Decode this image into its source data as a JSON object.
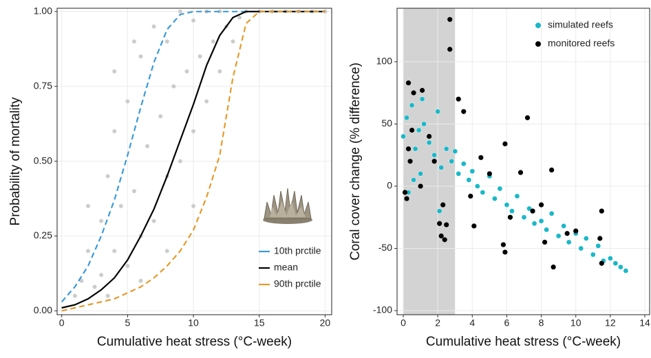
{
  "chart_data": [
    {
      "type": "scatter",
      "xlabel": "Cumulative heat stress (°C-week)",
      "ylabel": "Probability of mortality",
      "xlim": [
        -0.35,
        20.5
      ],
      "ylim": [
        -0.013,
        1.011
      ],
      "xticks": [
        0,
        5,
        10,
        15,
        20
      ],
      "yticks": [
        {
          "value": 0,
          "label": "0.00"
        },
        {
          "value": 0.25,
          "label": "0.25"
        },
        {
          "value": 0.5,
          "label": "0.50"
        },
        {
          "value": 0.75,
          "label": "0.75"
        },
        {
          "value": 1,
          "label": "1.00"
        }
      ],
      "grid": true,
      "legend": "lower right",
      "series": [
        {
          "mode": "points",
          "color": "#cccccc",
          "x": [
            1,
            1.5,
            2,
            2.5,
            3,
            3,
            3.5,
            4,
            4,
            4.5,
            5,
            5,
            5.5,
            6,
            6,
            6.5,
            7,
            7,
            7.5,
            8,
            8,
            8.5,
            9,
            9,
            9.5,
            10,
            10,
            10.5,
            11,
            11,
            11.5,
            12,
            12,
            12.5,
            13,
            13.5,
            14,
            15,
            16,
            17,
            18,
            19,
            20,
            2,
            4,
            6,
            8,
            10,
            3.5,
            5.5
          ],
          "values": [
            0.05,
            0.1,
            0.2,
            0.08,
            0.3,
            0.12,
            0.45,
            0.2,
            0.6,
            0.35,
            0.15,
            0.7,
            0.4,
            0.25,
            0.85,
            0.55,
            0.3,
            0.95,
            0.65,
            0.45,
            0.9,
            0.75,
            0.5,
            1.0,
            0.8,
            0.6,
            0.97,
            0.85,
            0.7,
            1.0,
            0.9,
            0.8,
            1.0,
            0.95,
            0.9,
            0.98,
            1.0,
            1,
            1,
            1,
            1,
            1,
            1,
            0.35,
            0.8,
            0.1,
            0.2,
            0.35,
            0.05,
            0.9
          ]
        },
        {
          "mode": "line",
          "dashed": true,
          "name": "10th prctile",
          "color": "#3a9ad9",
          "x": [
            0,
            1,
            2,
            3,
            4,
            5,
            6,
            7,
            8,
            9,
            10,
            11,
            12,
            13,
            14,
            15,
            16,
            17,
            18,
            19,
            20
          ],
          "values": [
            0.03,
            0.08,
            0.15,
            0.25,
            0.37,
            0.52,
            0.68,
            0.83,
            0.94,
            0.99,
            1,
            1,
            1,
            1,
            1,
            1,
            1,
            1,
            1,
            1,
            1
          ]
        },
        {
          "mode": "line",
          "dashed": false,
          "name": "mean",
          "color": "#000000",
          "x": [
            0,
            1,
            2,
            3,
            4,
            5,
            6,
            7,
            8,
            9,
            10,
            11,
            12,
            13,
            14,
            15,
            16,
            17,
            18,
            19,
            20
          ],
          "values": [
            0.01,
            0.02,
            0.04,
            0.07,
            0.11,
            0.17,
            0.25,
            0.34,
            0.45,
            0.57,
            0.69,
            0.82,
            0.92,
            0.98,
            1,
            1,
            1,
            1,
            1,
            1,
            1
          ]
        },
        {
          "mode": "line",
          "dashed": true,
          "name": "90th prctile",
          "color": "#e69a2a",
          "x": [
            0,
            1,
            2,
            3,
            4,
            5,
            6,
            7,
            8,
            9,
            10,
            11,
            12,
            13,
            14,
            15,
            16,
            17,
            18,
            19,
            20
          ],
          "values": [
            0,
            0.01,
            0.02,
            0.03,
            0.04,
            0.06,
            0.08,
            0.11,
            0.15,
            0.2,
            0.27,
            0.38,
            0.52,
            0.78,
            0.96,
            1,
            1,
            1,
            1,
            1,
            1
          ]
        }
      ]
    },
    {
      "type": "scatter",
      "xlabel": "Cumulative heat stress (°C-week)",
      "ylabel": "Coral cover change (% difference)",
      "xlim": [
        -0.36,
        14.28
      ],
      "ylim": [
        -103.3,
        143
      ],
      "xticks": [
        0,
        2,
        4,
        6,
        8,
        10,
        12,
        14
      ],
      "yticks": [
        -100,
        -50,
        0,
        50,
        100
      ],
      "grid": true,
      "legend": "upper right",
      "shaded_xrange": [
        0,
        3
      ],
      "shade_color": "#d3d3d3",
      "series": [
        {
          "mode": "points",
          "name": "simulated reefs",
          "color": "#1ab8c8",
          "x": [
            0,
            0.2,
            0.4,
            0.5,
            0.7,
            0.9,
            1,
            1.2,
            1.5,
            1.8,
            2,
            2.2,
            2.5,
            2.8,
            3,
            3.2,
            3.5,
            3.8,
            4,
            4.3,
            4.6,
            5,
            5.3,
            5.6,
            6,
            6.3,
            6.6,
            7,
            7.3,
            7.6,
            8,
            8.3,
            8.6,
            9,
            9.3,
            9.6,
            10,
            10.3,
            10.6,
            11,
            11.3,
            11.6,
            12,
            12.3,
            12.6,
            12.9,
            0.3,
            1.1,
            2.1,
            0.6
          ],
          "values": [
            40,
            55,
            20,
            65,
            30,
            45,
            10,
            50,
            35,
            25,
            60,
            15,
            30,
            20,
            28,
            10,
            18,
            5,
            12,
            0,
            -5,
            8,
            -10,
            -2,
            -15,
            -20,
            -8,
            -25,
            -18,
            -30,
            -28,
            -35,
            -22,
            -40,
            -32,
            -45,
            -38,
            -50,
            -42,
            -55,
            -48,
            -60,
            -58,
            -62,
            -65,
            -68,
            -5,
            70,
            -20,
            5
          ]
        },
        {
          "mode": "points",
          "name": "monitored reefs",
          "color": "#000000",
          "x": [
            0.3,
            0.6,
            1.1,
            2.7,
            2.7,
            0.5,
            0.3,
            0.2,
            0.4,
            1,
            1.8,
            2.1,
            2.2,
            2.4,
            2.5,
            3.2,
            3.5,
            4.1,
            4.5,
            5,
            5.9,
            5.8,
            5.9,
            7.2,
            6.8,
            7.5,
            8,
            8.6,
            8.7,
            9.5,
            10,
            11.5,
            11.4,
            11.5,
            8.2,
            0.1,
            1.5,
            2.3,
            3.9,
            6.2
          ],
          "values": [
            83,
            75,
            77,
            134,
            110,
            45,
            30,
            -10,
            20,
            0,
            20,
            -30,
            -40,
            -43,
            -31,
            70,
            60,
            -32,
            23,
            10,
            34,
            -47,
            -53,
            55,
            11,
            -20,
            -15,
            13,
            -65,
            -38,
            -36,
            -20,
            -42,
            -62,
            -45,
            -5,
            40,
            -15,
            -8,
            -25
          ]
        }
      ]
    }
  ]
}
